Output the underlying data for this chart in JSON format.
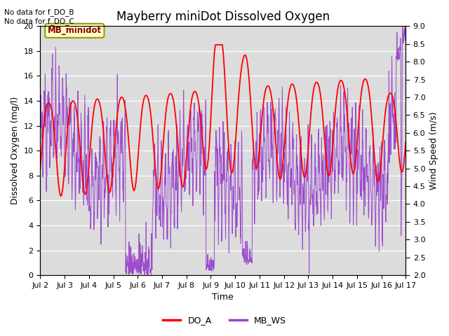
{
  "title": "Mayberry miniDot Dissolved Oxygen",
  "xlabel": "Time",
  "ylabel_left": "Dissolved Oxygen (mg/l)",
  "ylabel_right": "Wind Speed (m/s)",
  "ylim_left": [
    0,
    20
  ],
  "ylim_right": [
    2.0,
    9.0
  ],
  "do_color": "#ff0000",
  "ws_color": "#9944cc",
  "bg_color": "#dcdcdc",
  "fig_bg": "#ffffff",
  "legend_do": "DO_A",
  "legend_ws": "MB_WS",
  "no_data_text1": "No data for f_DO_B",
  "no_data_text2": "No data for f_DO_C",
  "box_label": "MB_minidot",
  "x_tick_labels": [
    "Jul 2",
    "Jul 3",
    "Jul 4",
    "Jul 5",
    "Jul 6",
    "Jul 7",
    "Jul 8",
    "Jul 9",
    "Jul 10",
    "Jul 11",
    "Jul 12",
    "Jul 13",
    "Jul 14",
    "Jul 15",
    "Jul 16",
    "Jul 17"
  ],
  "title_fontsize": 12,
  "label_fontsize": 9,
  "tick_fontsize": 8,
  "right_ticks": [
    2.0,
    2.5,
    3.0,
    3.5,
    4.0,
    4.5,
    5.0,
    5.5,
    6.0,
    6.5,
    7.0,
    7.5,
    8.0,
    8.5,
    9.0
  ],
  "left_ticks": [
    0,
    2,
    4,
    6,
    8,
    10,
    12,
    14,
    16,
    18,
    20
  ]
}
